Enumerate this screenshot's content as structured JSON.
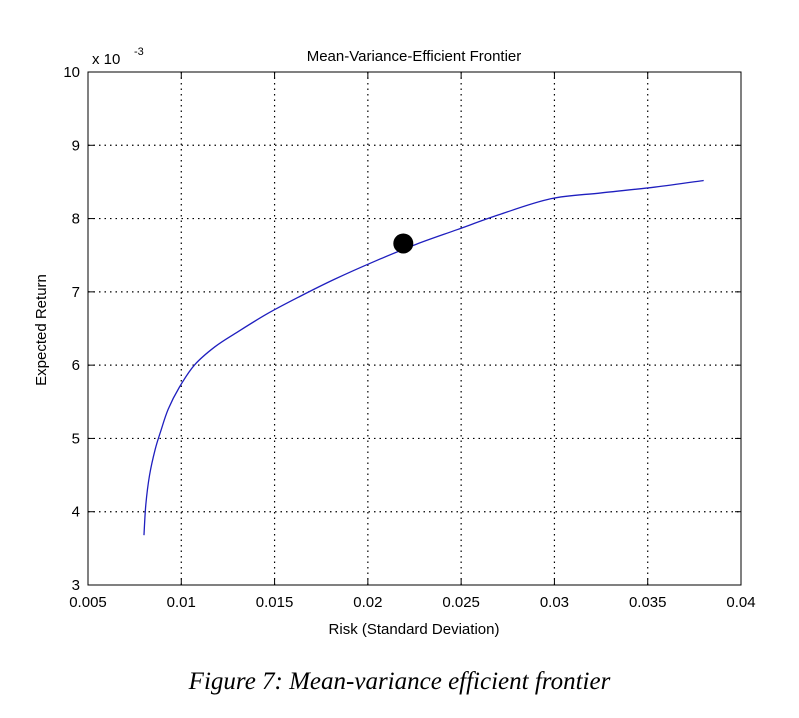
{
  "chart_data": {
    "type": "line",
    "title": "Mean-Variance-Efficient Frontier",
    "xlabel": "Risk (Standard Deviation)",
    "ylabel": "Expected Return",
    "y_exponent_label": "x 10",
    "y_exponent_power": "-3",
    "xlim": [
      0.005,
      0.04
    ],
    "ylim": [
      3,
      10
    ],
    "grid": true,
    "x_ticks": [
      0.005,
      0.01,
      0.015,
      0.02,
      0.025,
      0.03,
      0.035,
      0.04
    ],
    "x_tick_labels": [
      "0.005",
      "0.01",
      "0.015",
      "0.02",
      "0.025",
      "0.03",
      "0.035",
      "0.04"
    ],
    "y_ticks": [
      3,
      4,
      5,
      6,
      7,
      8,
      9,
      10
    ],
    "y_tick_labels": [
      "3",
      "4",
      "5",
      "6",
      "7",
      "8",
      "9",
      "10"
    ],
    "series": [
      {
        "color": "#1f1fbf",
        "x": [
          0.008,
          0.0081,
          0.0083,
          0.0086,
          0.0089,
          0.0093,
          0.0099,
          0.0107,
          0.0118,
          0.013,
          0.0146,
          0.0163,
          0.0182,
          0.0204,
          0.0226,
          0.0248,
          0.027,
          0.0298,
          0.0325,
          0.0354,
          0.038
        ],
        "y": [
          3.68,
          4.1,
          4.5,
          4.85,
          5.1,
          5.4,
          5.7,
          6.0,
          6.25,
          6.45,
          6.7,
          6.93,
          7.17,
          7.42,
          7.65,
          7.85,
          8.05,
          8.27,
          8.35,
          8.43,
          8.52
        ]
      }
    ],
    "highlight_point": {
      "x": 0.0219,
      "y": 7.66,
      "color": "#000000"
    }
  },
  "caption": "Figure 7: Mean-variance efficient frontier"
}
